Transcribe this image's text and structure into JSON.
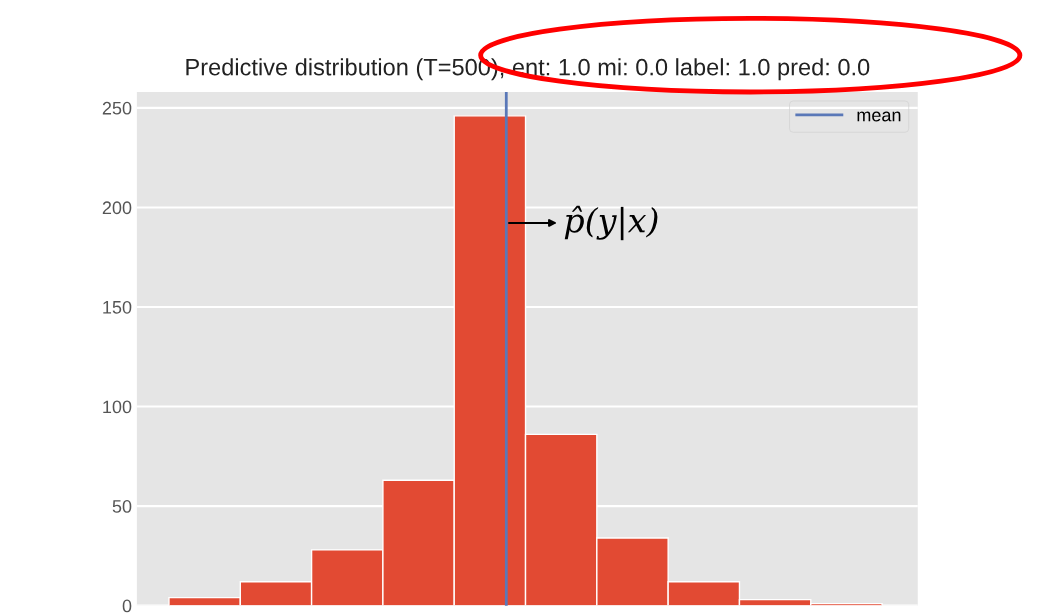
{
  "chart_data": {
    "type": "bar",
    "title": "Predictive distribution (T=500), ent: 1.0 mi: 0.0 label: 1.0 pred: 0.0",
    "categories": [
      null,
      null,
      null,
      null,
      null,
      null,
      null,
      null,
      null,
      null
    ],
    "values": [
      4,
      12,
      28,
      63,
      246,
      86,
      34,
      12,
      3,
      1
    ],
    "color": "#e24a33",
    "ylim": [
      0,
      258
    ],
    "yticks": [
      0,
      50,
      100,
      150,
      200,
      250
    ],
    "ref_lines": [
      {
        "axis": "x",
        "label": "mean",
        "color": "#5a78b8"
      }
    ],
    "annotations": [
      "p̂(y|x)"
    ],
    "grid": "y"
  }
}
